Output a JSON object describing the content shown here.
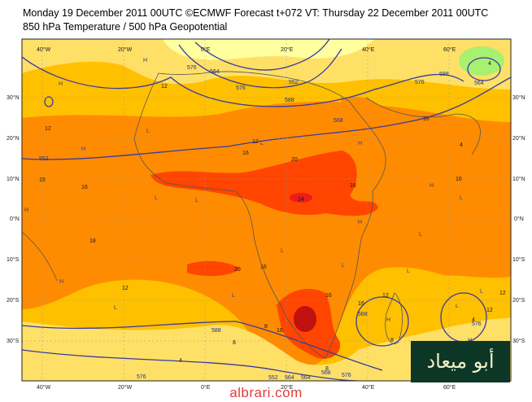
{
  "header": {
    "line1": "Monday 19 December 2011 00UTC ©ECMWF Forecast t+072 VT: Thursday 22 December 2011 00UTC",
    "line2": "850 hPa Temperature / 500 hPa Geopotential"
  },
  "longitude_labels": [
    "40°W",
    "20°W",
    "0°E",
    "20°E",
    "40°E",
    "60°E"
  ],
  "latitude_labels": [
    "30°N",
    "20°N",
    "10°N",
    "0°N",
    "10°S",
    "20°S",
    "30°S"
  ],
  "temperature_labels": [
    "12",
    "12",
    "12",
    "15",
    "16",
    "16",
    "16",
    "16",
    "18",
    "16",
    "20",
    "24",
    "20",
    "16",
    "16",
    "16",
    "16",
    "12",
    "12",
    "12",
    "12",
    "8",
    "8",
    "4",
    "4",
    "4",
    "4",
    "8",
    "8"
  ],
  "geopotential_labels": [
    "552",
    "564",
    "576",
    "588",
    "552",
    "568",
    "576",
    "588",
    "564",
    "576",
    "588",
    "568",
    "576",
    "564",
    "552",
    "576",
    "568",
    "564",
    "576"
  ],
  "pressure_centres": [
    "H",
    "H",
    "H",
    "H",
    "L",
    "L",
    "L",
    "H",
    "L",
    "H",
    "L",
    "L",
    "L",
    "H",
    "L",
    "L",
    "H",
    "H",
    "L",
    "L",
    "L",
    "L",
    "H"
  ],
  "colors": {
    "temp_lt_8": "#ffffa0",
    "temp_8_12": "#ffe066",
    "temp_12_16": "#ffc000",
    "temp_16_20": "#ff8c00",
    "temp_20_24": "#ff4500",
    "temp_24_28": "#ee1c1c",
    "temp_gt_28": "#c01010",
    "cold_blob": "#a8f070",
    "isoline": "#3a3aa0",
    "coastline": "#555555"
  },
  "watermark": "albrari.com",
  "logo_text": "أبو ميعاد"
}
